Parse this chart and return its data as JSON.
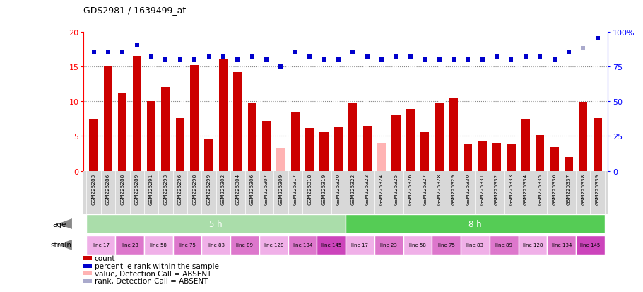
{
  "title": "GDS2981 / 1639499_at",
  "samples": [
    "GSM225283",
    "GSM225286",
    "GSM225288",
    "GSM225289",
    "GSM225291",
    "GSM225293",
    "GSM225296",
    "GSM225298",
    "GSM225299",
    "GSM225302",
    "GSM225304",
    "GSM225306",
    "GSM225307",
    "GSM225309",
    "GSM225317",
    "GSM225318",
    "GSM225319",
    "GSM225320",
    "GSM225322",
    "GSM225323",
    "GSM225324",
    "GSM225325",
    "GSM225326",
    "GSM225327",
    "GSM225328",
    "GSM225329",
    "GSM225330",
    "GSM225331",
    "GSM225332",
    "GSM225333",
    "GSM225334",
    "GSM225335",
    "GSM225336",
    "GSM225337",
    "GSM225338",
    "GSM225339"
  ],
  "counts": [
    7.4,
    15.0,
    11.1,
    16.5,
    10.0,
    12.0,
    7.6,
    15.2,
    4.5,
    16.0,
    14.2,
    9.7,
    7.2,
    3.2,
    8.5,
    6.1,
    5.5,
    6.4,
    9.8,
    6.5,
    4.0,
    8.1,
    8.9,
    5.5,
    9.7,
    10.5,
    3.9,
    4.2,
    4.0,
    3.9,
    7.5,
    5.1,
    3.4,
    2.0,
    9.9,
    7.6
  ],
  "absent_flags": [
    false,
    false,
    false,
    false,
    false,
    false,
    false,
    false,
    false,
    false,
    false,
    false,
    false,
    true,
    false,
    false,
    false,
    false,
    false,
    false,
    true,
    false,
    false,
    false,
    false,
    false,
    false,
    false,
    false,
    false,
    false,
    false,
    false,
    false,
    false,
    false
  ],
  "percentile_ranks": [
    85,
    85,
    85,
    90,
    82,
    80,
    80,
    80,
    82,
    82,
    80,
    82,
    80,
    75,
    85,
    82,
    80,
    80,
    85,
    82,
    80,
    82,
    82,
    80,
    80,
    80,
    80,
    80,
    82,
    80,
    82,
    82,
    80,
    85,
    88,
    95
  ],
  "absent_rank_flags": [
    false,
    false,
    false,
    false,
    false,
    false,
    false,
    false,
    false,
    false,
    false,
    false,
    false,
    false,
    false,
    false,
    false,
    false,
    false,
    false,
    false,
    false,
    false,
    false,
    false,
    false,
    false,
    false,
    false,
    false,
    false,
    false,
    false,
    false,
    true,
    false
  ],
  "bar_color_present": "#cc0000",
  "bar_color_absent": "#ffb3b3",
  "rank_color_present": "#0000cc",
  "rank_color_absent": "#aaaacc",
  "ylim_left": [
    0,
    20
  ],
  "ylim_right": [
    0,
    100
  ],
  "yticks_left": [
    0,
    5,
    10,
    15,
    20
  ],
  "yticks_right": [
    0,
    25,
    50,
    75,
    100
  ],
  "age_groups": [
    {
      "label": "5 h",
      "start": 0,
      "end": 18,
      "color": "#aaddaa"
    },
    {
      "label": "8 h",
      "start": 18,
      "end": 36,
      "color": "#55cc55"
    }
  ],
  "strain_groups": [
    {
      "label": "line 17",
      "start": 0,
      "end": 2,
      "color": "#f0b0e8"
    },
    {
      "label": "line 23",
      "start": 2,
      "end": 4,
      "color": "#dd77cc"
    },
    {
      "label": "line 58",
      "start": 4,
      "end": 6,
      "color": "#f0b0e8"
    },
    {
      "label": "line 75",
      "start": 6,
      "end": 8,
      "color": "#dd77cc"
    },
    {
      "label": "line 83",
      "start": 8,
      "end": 10,
      "color": "#f0b0e8"
    },
    {
      "label": "line 89",
      "start": 10,
      "end": 12,
      "color": "#dd77cc"
    },
    {
      "label": "line 128",
      "start": 12,
      "end": 14,
      "color": "#f0b0e8"
    },
    {
      "label": "line 134",
      "start": 14,
      "end": 16,
      "color": "#dd77cc"
    },
    {
      "label": "line 145",
      "start": 16,
      "end": 18,
      "color": "#cc44bb"
    },
    {
      "label": "line 17",
      "start": 18,
      "end": 20,
      "color": "#f0b0e8"
    },
    {
      "label": "line 23",
      "start": 20,
      "end": 22,
      "color": "#dd77cc"
    },
    {
      "label": "line 58",
      "start": 22,
      "end": 24,
      "color": "#f0b0e8"
    },
    {
      "label": "line 75",
      "start": 24,
      "end": 26,
      "color": "#dd77cc"
    },
    {
      "label": "line 83",
      "start": 26,
      "end": 28,
      "color": "#f0b0e8"
    },
    {
      "label": "line 89",
      "start": 28,
      "end": 30,
      "color": "#dd77cc"
    },
    {
      "label": "line 128",
      "start": 30,
      "end": 32,
      "color": "#f0b0e8"
    },
    {
      "label": "line 134",
      "start": 32,
      "end": 34,
      "color": "#dd77cc"
    },
    {
      "label": "line 145",
      "start": 34,
      "end": 36,
      "color": "#cc44bb"
    }
  ],
  "bg_color": "#ffffff",
  "plot_bg": "#ffffff",
  "xtick_bg": "#d8d8d8",
  "bar_width": 0.6,
  "grid_color": "#888888",
  "legend_items": [
    {
      "color": "#cc0000",
      "label": "count"
    },
    {
      "color": "#0000cc",
      "label": "percentile rank within the sample"
    },
    {
      "color": "#ffb3b3",
      "label": "value, Detection Call = ABSENT"
    },
    {
      "color": "#aaaacc",
      "label": "rank, Detection Call = ABSENT"
    }
  ]
}
